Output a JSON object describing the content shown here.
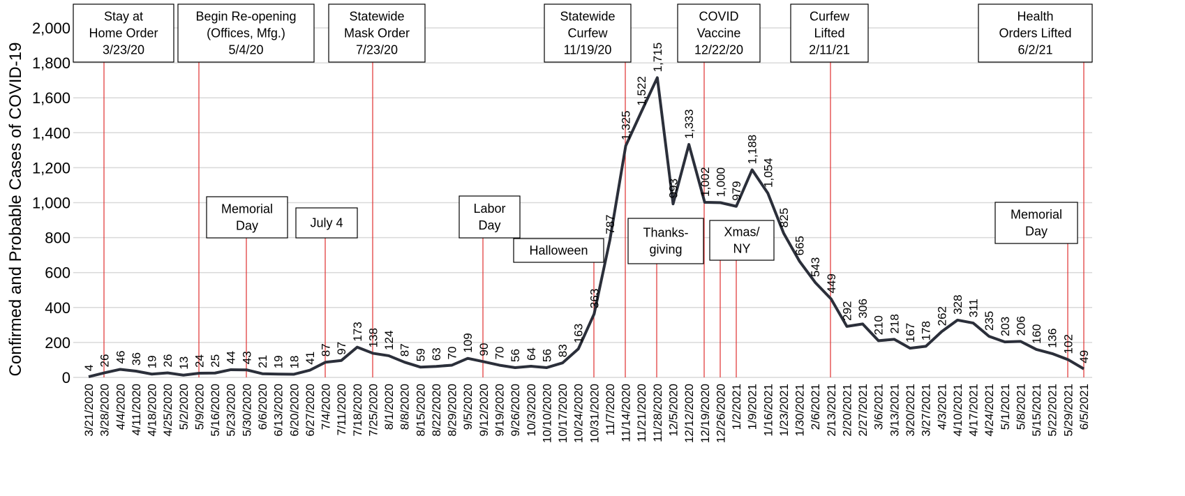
{
  "chart_data": {
    "type": "line",
    "y_label": "Confirmed and Probable Cases of COVID-19",
    "categories": [
      "3/21/2020",
      "3/28/2020",
      "4/4/2020",
      "4/11/2020",
      "4/18/2020",
      "4/25/2020",
      "5/2/2020",
      "5/9/2020",
      "5/16/2020",
      "5/23/2020",
      "5/30/2020",
      "6/6/2020",
      "6/13/2020",
      "6/20/2020",
      "6/27/2020",
      "7/4/2020",
      "7/11/2020",
      "7/18/2020",
      "7/25/2020",
      "8/1/2020",
      "8/8/2020",
      "8/15/2020",
      "8/22/2020",
      "8/29/2020",
      "9/5/2020",
      "9/12/2020",
      "9/19/2020",
      "9/26/2020",
      "10/3/2020",
      "10/10/2020",
      "10/17/2020",
      "10/24/2020",
      "10/31/2020",
      "11/7/2020",
      "11/14/2020",
      "11/21/2020",
      "11/28/2020",
      "12/5/2020",
      "12/12/2020",
      "12/19/2020",
      "12/26/2020",
      "1/2/2021",
      "1/9/2021",
      "1/16/2021",
      "1/23/2021",
      "1/30/2021",
      "2/6/2021",
      "2/13/2021",
      "2/20/2021",
      "2/27/2021",
      "3/6/2021",
      "3/13/2021",
      "3/20/2021",
      "3/27/2021",
      "4/3/2021",
      "4/10/2021",
      "4/17/2021",
      "4/24/2021",
      "5/1/2021",
      "5/8/2021",
      "5/15/2021",
      "5/22/2021",
      "5/29/2021",
      "6/5/2021"
    ],
    "series": [
      {
        "color": "#2b2f3a",
        "values": [
          4,
          26,
          46,
          36,
          19,
          26,
          13,
          24,
          25,
          44,
          43,
          21,
          19,
          18,
          41,
          87,
          97,
          173,
          138,
          124,
          87,
          59,
          63,
          70,
          109,
          90,
          70,
          56,
          64,
          56,
          83,
          163,
          363,
          787,
          1325,
          1522,
          1715,
          993,
          1333,
          1002,
          1000,
          979,
          1188,
          1054,
          825,
          665,
          543,
          449,
          292,
          306,
          210,
          218,
          167,
          178,
          262,
          328,
          311,
          235,
          203,
          206,
          160,
          136,
          102,
          49
        ],
        "value_labels": [
          "4",
          "26",
          "46",
          "36",
          "19",
          "26",
          "13",
          "24",
          "25",
          "44",
          "43",
          "21",
          "19",
          "18",
          "41",
          "87",
          "97",
          "173",
          "138",
          "124",
          "87",
          "59",
          "63",
          "70",
          "109",
          "90",
          "70",
          "56",
          "64",
          "56",
          "83",
          "163",
          "363",
          "787",
          "1,325",
          "1,522",
          "1,715",
          "993",
          "1,333",
          "1,002",
          "1,000",
          "979",
          "1,188",
          "1,054",
          "825",
          "665",
          "543",
          "449",
          "292",
          "306",
          "210",
          "218",
          "167",
          "178",
          "262",
          "328",
          "311",
          "235",
          "203",
          "206",
          "160",
          "136",
          "102",
          "49"
        ]
      }
    ],
    "ylim": [
      0,
      2000
    ],
    "yticks": [
      0,
      200,
      400,
      600,
      800,
      {
        "value": 1000,
        "label": "1,000"
      },
      {
        "value": 1200,
        "label": "1,200"
      },
      {
        "value": 1400,
        "label": "1,400"
      },
      {
        "value": 1600,
        "label": "1,600"
      },
      {
        "value": 1800,
        "label": "1,800"
      },
      {
        "value": 2000,
        "label": "2,000"
      }
    ],
    "grid": true,
    "annotations": [
      {
        "lines": [
          "Stay at",
          "Home Order",
          "3/23/20"
        ]
      },
      {
        "lines": [
          "Begin Re-opening",
          "(Offices, Mfg.)",
          "5/4/20"
        ]
      },
      {
        "lines": [
          "Statewide",
          "Mask Order",
          "7/23/20"
        ]
      },
      {
        "lines": [
          "Statewide",
          "Curfew",
          "11/19/20"
        ]
      },
      {
        "lines": [
          "COVID",
          "Vaccine",
          "12/22/20"
        ]
      },
      {
        "lines": [
          "Curfew",
          "Lifted",
          "2/11/21"
        ]
      },
      {
        "lines": [
          "Health",
          "Orders Lifted",
          "6/2/21"
        ]
      },
      {
        "lines": [
          "Memorial",
          "Day"
        ]
      },
      {
        "lines": [
          "July 4"
        ]
      },
      {
        "lines": [
          "Labor",
          "Day"
        ]
      },
      {
        "lines": [
          "Halloween"
        ]
      },
      {
        "lines": [
          "Thanks-",
          "giving"
        ]
      },
      {
        "lines": [
          "Xmas/",
          "NY"
        ]
      },
      {
        "lines": [
          "Memorial",
          "Day"
        ]
      }
    ]
  }
}
